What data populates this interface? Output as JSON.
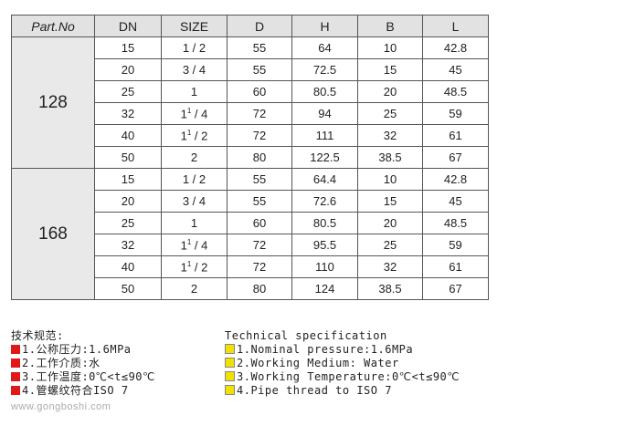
{
  "table": {
    "headers": [
      "Part.No",
      "DN",
      "SIZE",
      "D",
      "H",
      "B",
      "L"
    ],
    "groups": [
      {
        "part": "128",
        "rows": [
          [
            "15",
            "1 / 2",
            "55",
            "64",
            "10",
            "42.8"
          ],
          [
            "20",
            "3 / 4",
            "55",
            "72.5",
            "15",
            "45"
          ],
          [
            "25",
            "1",
            "60",
            "80.5",
            "20",
            "48.5"
          ],
          [
            "32",
            "1¹ / 4",
            "72",
            "94",
            "25",
            "59"
          ],
          [
            "40",
            "1¹ / 2",
            "72",
            "111",
            "32",
            "61"
          ],
          [
            "50",
            "2",
            "80",
            "122.5",
            "38.5",
            "67"
          ]
        ]
      },
      {
        "part": "168",
        "rows": [
          [
            "15",
            "1 / 2",
            "55",
            "64.4",
            "10",
            "42.8"
          ],
          [
            "20",
            "3 / 4",
            "55",
            "72.6",
            "15",
            "45"
          ],
          [
            "25",
            "1",
            "60",
            "80.5",
            "20",
            "48.5"
          ],
          [
            "32",
            "1¹ / 4",
            "72",
            "95.5",
            "25",
            "59"
          ],
          [
            "40",
            "1¹ / 2",
            "72",
            "110",
            "32",
            "61"
          ],
          [
            "50",
            "2",
            "80",
            "124",
            "38.5",
            "67"
          ]
        ]
      }
    ]
  },
  "spec_cn": {
    "title": "技术规范:",
    "items": [
      "1.公称压力:1.6MPa",
      "2.工作介质:水",
      "3.工作温度:0℃<t≤90℃",
      "4.管螺纹符合ISO 7"
    ],
    "bullet_color": "#e01818"
  },
  "spec_en": {
    "title": "Technical specification",
    "items": [
      "1.Nominal pressure:1.6MPa",
      "2.Working Medium: Water",
      "3.Working Temperature:0℃<t≤90℃",
      "4.Pipe thread to ISO 7"
    ],
    "bullet_color": "#f2e000"
  },
  "watermark": "www.gongboshi.com"
}
